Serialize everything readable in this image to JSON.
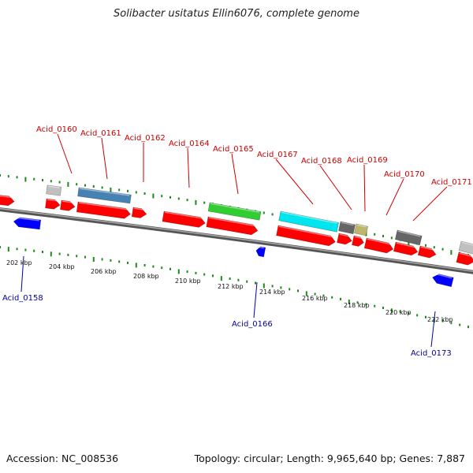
{
  "header": {
    "title": "Solibacter usitatus Ellin6076, complete genome"
  },
  "footer": {
    "accession": "Accession: NC_008536",
    "summary": "Topology: circular; Length: 9,965,640 bp; Genes: 7,887"
  },
  "colors": {
    "cds": "#ff0000",
    "reverse_cds": "#0000ff",
    "gene_blue": "#4682b4",
    "gene_green": "#32cd32",
    "gene_cyan": "#00e5ee",
    "gene_dark_gray": "#666666",
    "gene_light_gray": "#c0c0c0",
    "gene_khaki": "#bdb76b",
    "gc_ticks": "#1a8a1a",
    "backbone": "#888888",
    "label_up": "#cc0000",
    "label_down": "#000099"
  },
  "scale": {
    "labels": [
      "202 kbp",
      "204 kbp",
      "206 kbp",
      "208 kbp",
      "210 kbp",
      "212 kbp",
      "214 kbp",
      "216 kbp",
      "218 kbp",
      "220 kbp",
      "222 kbp"
    ]
  },
  "labels_up": [
    "Acid_0160",
    "Acid_0161",
    "Acid_0162",
    "Acid_0164",
    "Acid_0165",
    "Acid_0167",
    "Acid_0168",
    "Acid_0169",
    "Acid_0170",
    "Acid_0171"
  ],
  "labels_down": [
    "Acid_0158",
    "Acid_0166",
    "Acid_0173"
  ]
}
